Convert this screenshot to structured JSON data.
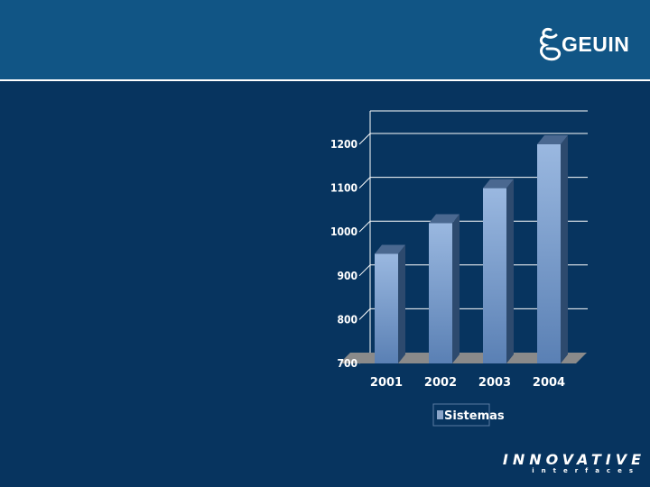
{
  "header": {
    "logo_text": "GEUIN"
  },
  "footer": {
    "brand_name": "INNOVATIVE",
    "brand_sub": "interfaces"
  },
  "colors": {
    "background": "#07345f",
    "header": "#115585",
    "bar_front": "#7f9fcd",
    "floor": "#8a8a8a"
  },
  "chart_data": {
    "type": "bar",
    "categories": [
      "2001",
      "2002",
      "2003",
      "2004"
    ],
    "series": [
      {
        "name": "Sistemas",
        "values": [
          950,
          1020,
          1100,
          1200
        ]
      }
    ],
    "yticks": [
      "700",
      "800",
      "900",
      "1000",
      "1100",
      "1200"
    ],
    "ylim": [
      700,
      1200
    ],
    "grid": true,
    "legend": "bottom",
    "title": "",
    "xlabel": "",
    "ylabel": ""
  }
}
